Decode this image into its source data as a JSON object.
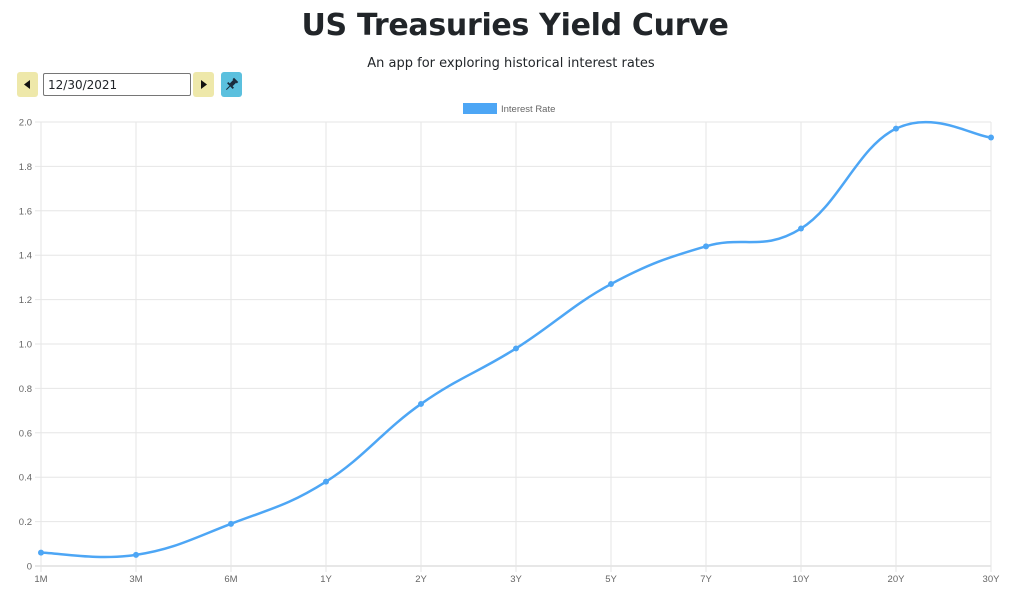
{
  "header": {
    "title": "US Treasuries Yield Curve",
    "subtitle": "An app for exploring historical interest rates"
  },
  "controls": {
    "date_value": "12/30/2021",
    "prev_icon": "triangle-left-icon",
    "next_icon": "triangle-right-icon",
    "pin_icon": "pushpin-icon"
  },
  "colors": {
    "line": "#4da6f5",
    "grid": "#e6e6e6",
    "ticks": "#666666",
    "nav_button": "#eee8aa",
    "pin_button": "#5bc0de"
  },
  "chart_data": {
    "type": "line",
    "categories": [
      "1M",
      "3M",
      "6M",
      "1Y",
      "2Y",
      "3Y",
      "5Y",
      "7Y",
      "10Y",
      "20Y",
      "30Y"
    ],
    "series": [
      {
        "name": "Interest Rate",
        "values": [
          0.06,
          0.05,
          0.19,
          0.38,
          0.73,
          0.98,
          1.27,
          1.44,
          1.52,
          1.97,
          1.93
        ]
      }
    ],
    "ylim": [
      0,
      2.0
    ],
    "yticks": [
      "0",
      "0.2",
      "0.4",
      "0.6",
      "0.8",
      "1.0",
      "1.2",
      "1.4",
      "1.6",
      "1.8",
      "2.0"
    ],
    "grid": true,
    "legend": "top-center",
    "curve": "smooth"
  }
}
